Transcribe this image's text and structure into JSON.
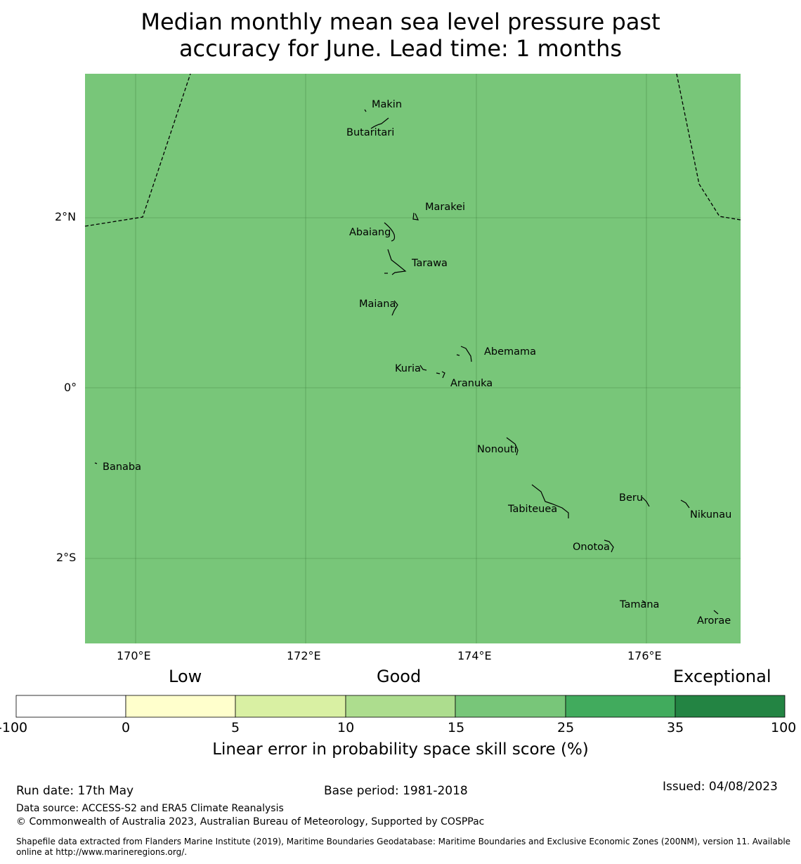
{
  "title": {
    "line1": "Median monthly mean sea level pressure past",
    "line2": "accuracy for June. Lead time: 1 months"
  },
  "map": {
    "fill_color": "#78c679",
    "lat_labels": [
      "2°N",
      "0°",
      "2°S"
    ],
    "lon_labels": [
      "170°E",
      "172°E",
      "174°E",
      "176°E"
    ],
    "places": [
      {
        "name": "Makin"
      },
      {
        "name": "Butaritari"
      },
      {
        "name": "Marakei"
      },
      {
        "name": "Abaiang"
      },
      {
        "name": "Tarawa"
      },
      {
        "name": "Maiana"
      },
      {
        "name": "Abemama"
      },
      {
        "name": "Kuria"
      },
      {
        "name": "Aranuka"
      },
      {
        "name": "Nonouti"
      },
      {
        "name": "Banaba"
      },
      {
        "name": "Beru"
      },
      {
        "name": "Tabiteuea"
      },
      {
        "name": "Nikunau"
      },
      {
        "name": "Onotoa"
      },
      {
        "name": "Tamana"
      },
      {
        "name": "Arorae"
      }
    ]
  },
  "legend": {
    "categories": [
      "Low",
      "Good",
      "Exceptional"
    ],
    "ticks": [
      "-100",
      "0",
      "5",
      "10",
      "15",
      "25",
      "35",
      "100"
    ],
    "colors": [
      "#ffffff",
      "#ffffcc",
      "#d9f0a3",
      "#addd8e",
      "#78c679",
      "#41ab5d",
      "#238443"
    ],
    "title": "Linear error in probability space skill score (%)"
  },
  "footer": {
    "run_date": "Run date: 17th May",
    "base_period": "Base period: 1981-2018",
    "issued": "Issued: 04/08/2023",
    "data_source": "Data source: ACCESS-S2 and ERA5 Climate Reanalysis",
    "copyright": "© Commonwealth of Australia 2023, Australian Bureau of Meteorology, Supported by COSPPac",
    "shapefile": "Shapefile data extracted from Flanders Marine Institute (2019), Maritime Boundaries Geodatabase: Maritime Boundaries and Exclusive Economic Zones (200NM), version 11. Available online at http://www.marineregions.org/."
  }
}
